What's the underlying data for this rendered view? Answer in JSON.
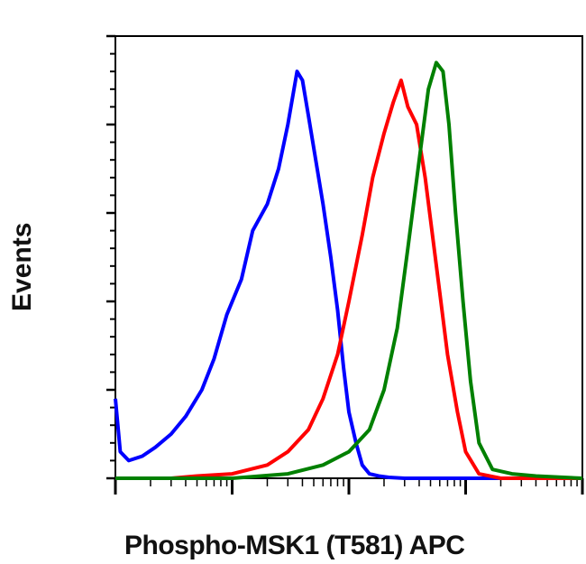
{
  "chart_data": {
    "type": "line",
    "title": "",
    "xlabel": "Phospho-MSK1 (T581) APC",
    "ylabel": "Events",
    "x_scale": "log",
    "xlim": [
      1,
      10000
    ],
    "ylim": [
      0,
      100
    ],
    "grid": false,
    "legend": "none",
    "series": [
      {
        "color": "#0000ff",
        "x": [
          1,
          1.1,
          1.3,
          1.7,
          2.2,
          3,
          4,
          5.5,
          7,
          9,
          12,
          15,
          20,
          25,
          30,
          36,
          40,
          45,
          52,
          60,
          70,
          80,
          90,
          100,
          115,
          130,
          150,
          180,
          220,
          300,
          500,
          1000,
          10000
        ],
        "y": [
          18,
          6,
          4,
          5,
          7,
          10,
          14,
          20,
          27,
          37,
          45,
          56,
          62,
          70,
          80,
          92,
          90,
          82,
          72,
          62,
          50,
          38,
          25,
          15,
          8,
          3,
          1,
          0.5,
          0.2,
          0,
          0,
          0,
          0
        ]
      },
      {
        "color": "#ff0000",
        "x": [
          1,
          3,
          5,
          10,
          20,
          30,
          45,
          60,
          80,
          100,
          130,
          160,
          200,
          240,
          280,
          320,
          380,
          450,
          520,
          600,
          700,
          850,
          1000,
          1300,
          2000,
          10000
        ],
        "y": [
          0,
          0,
          0.5,
          1,
          3,
          6,
          11,
          18,
          28,
          40,
          55,
          68,
          78,
          85,
          90,
          84,
          80,
          68,
          55,
          42,
          28,
          15,
          6,
          1,
          0,
          0
        ]
      },
      {
        "color": "#008000",
        "x": [
          1,
          10,
          30,
          60,
          100,
          150,
          200,
          260,
          320,
          400,
          480,
          560,
          640,
          720,
          820,
          950,
          1100,
          1300,
          1700,
          2500,
          4000,
          10000
        ],
        "y": [
          0,
          0,
          1,
          3,
          6,
          11,
          20,
          34,
          52,
          72,
          88,
          94,
          92,
          80,
          60,
          40,
          22,
          8,
          2,
          1,
          0.5,
          0
        ]
      }
    ]
  }
}
